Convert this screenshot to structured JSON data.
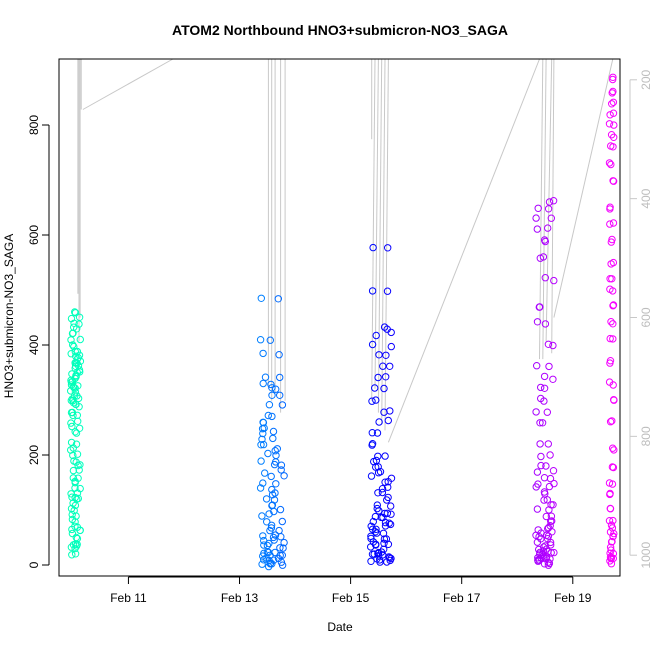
{
  "chart_data": {
    "type": "scatter",
    "title": "ATOM2 Northbound HNO3+submicron-NO3_SAGA",
    "xlabel": "Date",
    "ylabel": "HNO3+submicron-NO3_SAGA",
    "x_ticks": [
      "Feb 11",
      "Feb 13",
      "Feb 15",
      "Feb 17",
      "Feb 19"
    ],
    "x_tick_values": [
      11,
      13,
      15,
      17,
      19
    ],
    "xlim": [
      9.75,
      19.85
    ],
    "ylim": [
      -20,
      920
    ],
    "y_ticks": [
      0,
      200,
      400,
      600,
      800
    ],
    "right_axis": {
      "label_color": "#bdbdbd",
      "ticks": [
        200,
        400,
        600,
        800,
        1000
      ],
      "lim": [
        165,
        1035
      ],
      "reversed": true,
      "line_color": "#c8c8c8",
      "profile": [
        {
          "x": 10.09,
          "p": 160
        },
        {
          "x": 10.09,
          "p": 560
        },
        {
          "x": 10.11,
          "p": 160
        },
        {
          "x": 10.11,
          "p": 640
        },
        {
          "x": 10.13,
          "p": 160
        },
        {
          "x": 10.13,
          "p": 600
        },
        {
          "x": 10.15,
          "p": 160
        },
        {
          "x": 10.15,
          "p": 250
        },
        {
          "x": 10.18,
          "p": 250
        },
        {
          "x": 11.8,
          "p": 160
        },
        {
          "x": 13.52,
          "p": 160
        },
        {
          "x": 13.52,
          "p": 720
        },
        {
          "x": 13.58,
          "p": 160
        },
        {
          "x": 13.58,
          "p": 740
        },
        {
          "x": 13.64,
          "p": 160
        },
        {
          "x": 13.64,
          "p": 730
        },
        {
          "x": 13.74,
          "p": 160
        },
        {
          "x": 13.74,
          "p": 760
        },
        {
          "x": 13.82,
          "p": 160
        },
        {
          "x": 13.82,
          "p": 740
        },
        {
          "x": 13.3,
          "p": 160
        },
        {
          "x": 14.3,
          "p": 160
        },
        {
          "x": 15.38,
          "p": 300
        },
        {
          "x": 15.38,
          "p": 160
        },
        {
          "x": 15.38,
          "p": 740
        },
        {
          "x": 15.44,
          "p": 160
        },
        {
          "x": 15.44,
          "p": 720
        },
        {
          "x": 15.5,
          "p": 160
        },
        {
          "x": 15.5,
          "p": 760
        },
        {
          "x": 15.56,
          "p": 160
        },
        {
          "x": 15.56,
          "p": 780
        },
        {
          "x": 15.62,
          "p": 160
        },
        {
          "x": 15.62,
          "p": 790
        },
        {
          "x": 15.68,
          "p": 160
        },
        {
          "x": 15.68,
          "p": 810
        },
        {
          "x": 18.4,
          "p": 160
        },
        {
          "x": 18.4,
          "p": 670
        },
        {
          "x": 18.46,
          "p": 160
        },
        {
          "x": 18.46,
          "p": 670
        },
        {
          "x": 18.52,
          "p": 160
        },
        {
          "x": 18.52,
          "p": 640
        },
        {
          "x": 18.62,
          "p": 160
        },
        {
          "x": 18.62,
          "p": 660
        },
        {
          "x": 18.66,
          "p": 160
        },
        {
          "x": 18.66,
          "p": 600
        },
        {
          "x": 19.72,
          "p": 160
        },
        {
          "x": 19.72,
          "p": 880
        }
      ]
    },
    "color_note": "points colored by time (cyan-green to magenta)",
    "clusters": [
      {
        "x_center": 10.05,
        "x_spread": 0.09,
        "y_samples": [
          20,
          30,
          35,
          40,
          50,
          60,
          65,
          70,
          80,
          90,
          100,
          110,
          120,
          125,
          130,
          140,
          150,
          160,
          170,
          180,
          190,
          200,
          210,
          220,
          240,
          250,
          260,
          270,
          280,
          290,
          295,
          300,
          305,
          310,
          315,
          320,
          325,
          330,
          335,
          340,
          345,
          350,
          355,
          360,
          365,
          370,
          375,
          380,
          385,
          390,
          400,
          410,
          420,
          430,
          440,
          450,
          460
        ]
      },
      {
        "x_center": 13.6,
        "x_spread": 0.22,
        "y_samples": [
          0,
          2,
          5,
          8,
          10,
          12,
          15,
          18,
          20,
          25,
          30,
          35,
          40,
          45,
          50,
          55,
          60,
          70,
          80,
          90,
          100,
          110,
          120,
          130,
          140,
          150,
          160,
          170,
          180,
          190,
          200,
          210,
          220,
          230,
          240,
          250,
          260,
          270,
          290,
          310,
          320,
          330,
          340,
          385,
          410,
          485
        ]
      },
      {
        "x_center": 15.55,
        "x_spread": 0.19,
        "y_samples": [
          5,
          8,
          10,
          12,
          15,
          18,
          20,
          25,
          30,
          35,
          40,
          45,
          50,
          55,
          60,
          65,
          70,
          75,
          80,
          85,
          90,
          95,
          100,
          110,
          120,
          130,
          140,
          150,
          160,
          170,
          180,
          190,
          200,
          220,
          240,
          260,
          280,
          300,
          320,
          340,
          360,
          380,
          400,
          420,
          430,
          500,
          575
        ]
      },
      {
        "x_center": 18.5,
        "x_spread": 0.17,
        "y_samples": [
          2,
          5,
          8,
          10,
          12,
          15,
          18,
          20,
          22,
          25,
          28,
          30,
          35,
          40,
          45,
          50,
          55,
          60,
          65,
          70,
          80,
          90,
          100,
          110,
          120,
          130,
          140,
          150,
          160,
          170,
          180,
          200,
          220,
          260,
          280,
          300,
          320,
          340,
          360,
          400,
          440,
          470,
          520,
          560,
          590,
          610,
          630,
          650,
          660
        ]
      },
      {
        "x_center": 19.7,
        "x_spread": 0.04,
        "y_samples": [
          5,
          10,
          15,
          20,
          30,
          40,
          50,
          60,
          70,
          80,
          100,
          130,
          150,
          180,
          210,
          260,
          300,
          330,
          370,
          410,
          440,
          470,
          500,
          520,
          550,
          590,
          620,
          650,
          700,
          730,
          760,
          780,
          800,
          820,
          840,
          860,
          885
        ]
      }
    ]
  }
}
